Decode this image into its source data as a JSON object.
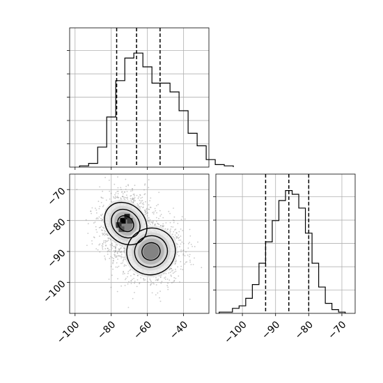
{
  "chart_data": [
    {
      "type": "histogram",
      "panel": "top-left",
      "x_axis": {
        "range": [
          -103,
          -26
        ],
        "ticks": [
          -100,
          -80,
          -60,
          -40
        ],
        "tick_labels_shown": false
      },
      "y_axis": {
        "range": [
          0,
          1.0
        ],
        "tick_labels_shown": false
      },
      "grid": true,
      "bins": {
        "start": -97.5,
        "width": 5,
        "heights": [
          0.01,
          0.03,
          0.16,
          0.4,
          0.69,
          0.87,
          0.91,
          0.8,
          0.67,
          0.67,
          0.6,
          0.45,
          0.27,
          0.17,
          0.06,
          0.02,
          0.01
        ]
      },
      "quantiles": [
        -77,
        -66,
        -53
      ]
    },
    {
      "type": "scatter-density",
      "panel": "bottom-left",
      "x_axis": {
        "range": [
          -103,
          -26
        ],
        "ticks": [
          -100,
          -80,
          -60,
          -40
        ],
        "tick_labels": [
          "−100",
          "−80",
          "−60",
          "−40"
        ]
      },
      "y_axis": {
        "range": [
          -110,
          -65
        ],
        "ticks": [
          -70,
          -80,
          -90,
          -100
        ],
        "tick_labels": [
          "−70",
          "−80",
          "−90",
          "−100"
        ]
      },
      "grid": true,
      "clusters": [
        {
          "center_x": -72,
          "center_y": -81,
          "sd_x": 7,
          "sd_y": 5,
          "weight": 0.55
        },
        {
          "center_x": -58,
          "center_y": -90,
          "sd_x": 9,
          "sd_y": 5,
          "weight": 0.45
        }
      ]
    },
    {
      "type": "histogram",
      "panel": "bottom-right",
      "x_axis": {
        "range": [
          -108,
          -66
        ],
        "ticks": [
          -100,
          -90,
          -80,
          -70
        ],
        "tick_labels": [
          "−100",
          "−90",
          "−80",
          "−70"
        ]
      },
      "y_axis": {
        "range": [
          0,
          1.0
        ],
        "tick_labels_shown": false
      },
      "grid": true,
      "bins": {
        "start": -107,
        "width": 2,
        "heights": [
          0.01,
          0.01,
          0.04,
          0.06,
          0.12,
          0.23,
          0.4,
          0.57,
          0.74,
          0.9,
          0.98,
          0.95,
          0.84,
          0.64,
          0.4,
          0.21,
          0.08,
          0.03,
          0.01
        ]
      },
      "quantiles": [
        -93,
        -86,
        -80
      ]
    }
  ]
}
